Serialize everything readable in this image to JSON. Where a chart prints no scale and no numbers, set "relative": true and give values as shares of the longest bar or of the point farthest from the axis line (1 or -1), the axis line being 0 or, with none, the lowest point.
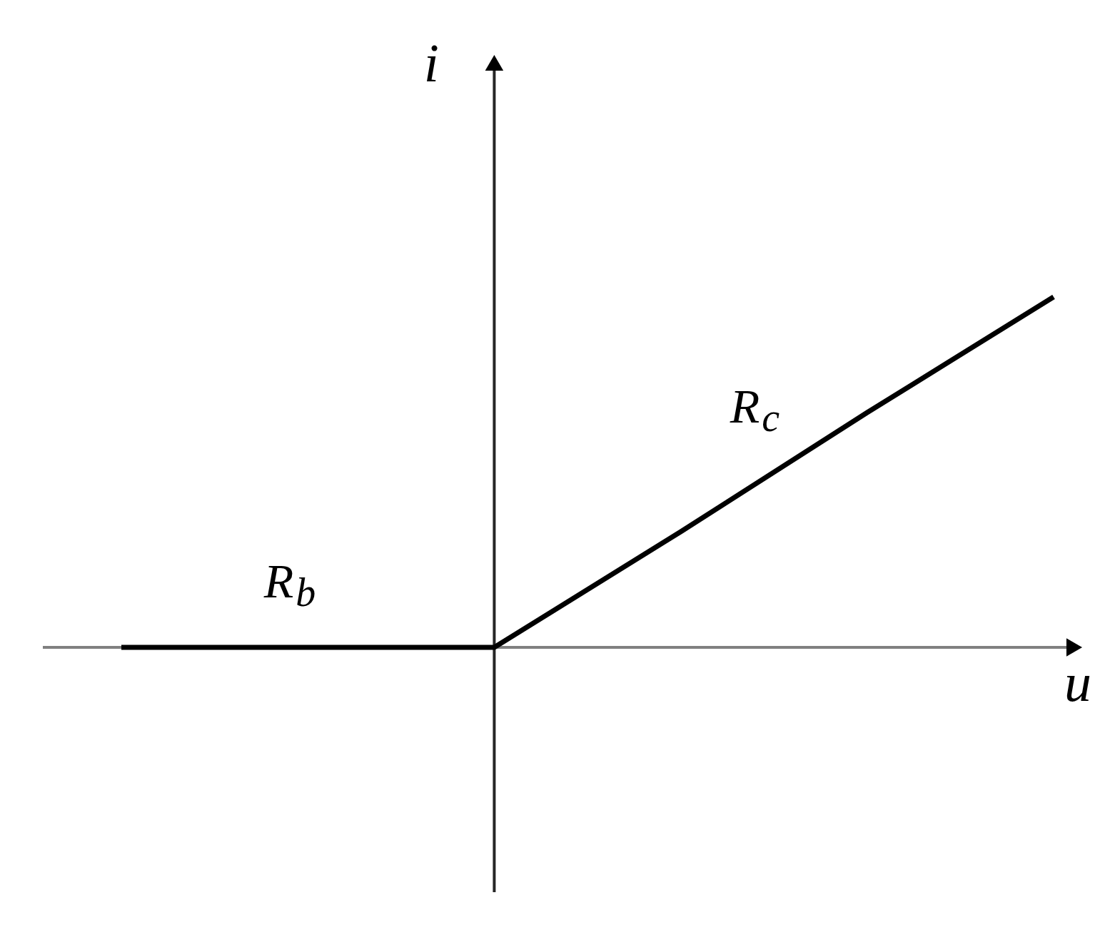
{
  "chart_data": {
    "type": "line",
    "relative": true,
    "xlabel": "u",
    "ylabel": "i",
    "categories": [
      null,
      null,
      null,
      null,
      null,
      null
    ],
    "series": [
      {
        "color": "#000000",
        "values": [
          0,
          0,
          0,
          0.33,
          0.67,
          1
        ]
      }
    ],
    "annotations": [
      "R$_{b}$",
      "R$_{c}$"
    ]
  }
}
